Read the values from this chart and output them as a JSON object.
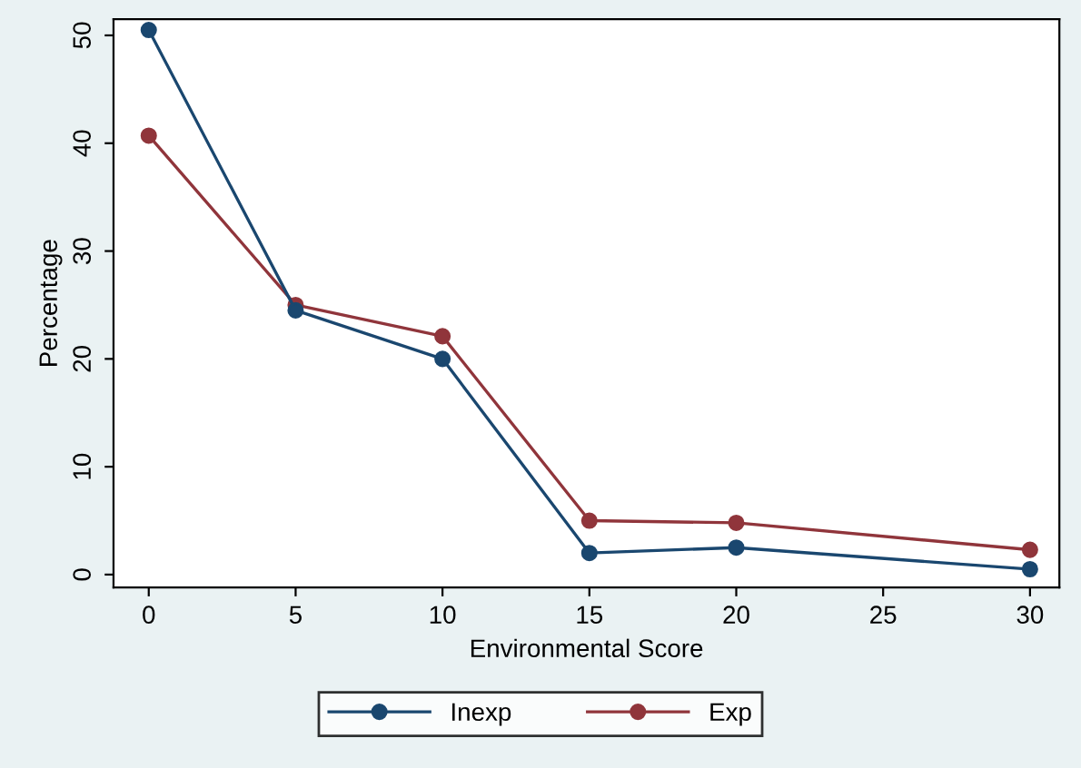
{
  "chart_data": {
    "type": "line",
    "xlabel": "Environmental Score",
    "ylabel": "Percentage",
    "x": [
      0,
      5,
      10,
      15,
      20,
      30
    ],
    "series": [
      {
        "name": "Inexp",
        "color": "#1a476f",
        "values": [
          50.5,
          24.5,
          20,
          2,
          2.5,
          0.5
        ]
      },
      {
        "name": "Exp",
        "color": "#90353b",
        "values": [
          40.7,
          25,
          22.1,
          5,
          4.8,
          2.3
        ]
      }
    ],
    "xlim": [
      -1.2,
      31
    ],
    "ylim": [
      -1.2,
      51.5
    ],
    "xticks": [
      0,
      5,
      10,
      15,
      20,
      25,
      30
    ],
    "yticks": [
      0,
      10,
      20,
      30,
      40,
      50
    ],
    "marker": "circle",
    "line_style": "solid",
    "legend": "bottom",
    "grid": false
  }
}
